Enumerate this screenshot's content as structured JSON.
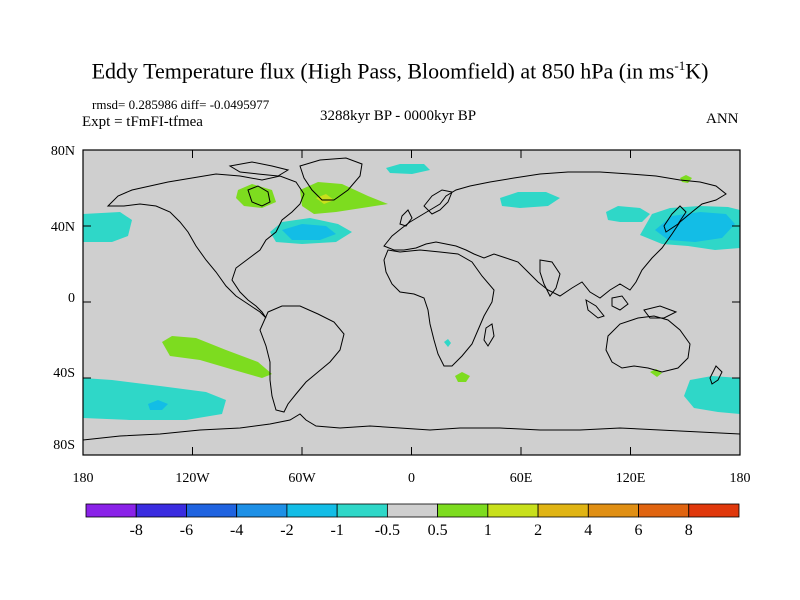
{
  "figure": {
    "title_main": "Eddy Temperature flux (High Pass, Bloomfield) at 850 hPa (in ms",
    "title_sup": "-1",
    "title_end": "K)",
    "stats": "rmsd= 0.285986 diff= -0.0495977",
    "experiment": "Expt = tFmFI-tfmea",
    "period": "3288kyr BP - 0000kyr BP",
    "season": "ANN"
  },
  "map": {
    "lat_labels": [
      "80N",
      "40N",
      "0",
      "40S",
      "80S"
    ],
    "lon_labels": [
      "180",
      "120W",
      "60W",
      "0",
      "60E",
      "120E",
      "180"
    ]
  },
  "colorbar": {
    "labels": [
      "-8",
      "-6",
      "-4",
      "-2",
      "-1",
      "-0.5",
      "0.5",
      "1",
      "2",
      "4",
      "6",
      "8"
    ],
    "colors": [
      "#8a22e8",
      "#3a2ce0",
      "#1f63e0",
      "#1e90e6",
      "#13bde6",
      "#2fd7c8",
      "#cfcfcf",
      "#7ddc1f",
      "#c8e01c",
      "#e0b414",
      "#e08f14",
      "#e06410",
      "#e0380c"
    ]
  },
  "colors": {
    "ocean_land": "#cfcfcf",
    "cyan_neg": "#2fd7c8",
    "light_blue_neg": "#13bde6",
    "green_pos": "#7ddc1f",
    "yellow_pos": "#c8e01c"
  }
}
